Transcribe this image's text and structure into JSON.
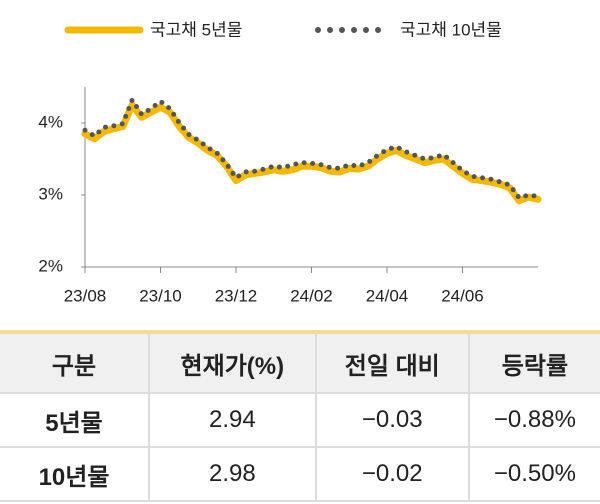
{
  "chart_data": {
    "type": "line",
    "categories": [
      "23/08",
      null,
      null,
      null,
      null,
      null,
      null,
      null,
      "23/10",
      null,
      null,
      null,
      null,
      null,
      null,
      null,
      "23/12",
      null,
      null,
      null,
      null,
      null,
      null,
      null,
      "24/02",
      null,
      null,
      null,
      null,
      null,
      null,
      null,
      "24/04",
      null,
      null,
      null,
      null,
      null,
      null,
      null,
      "24/06",
      null,
      null,
      null,
      null,
      null,
      null,
      null,
      null
    ],
    "series": [
      {
        "name": "국고채 5년물",
        "color": "#f5b800",
        "style": "solid",
        "values": [
          3.85,
          3.78,
          3.88,
          3.92,
          3.95,
          4.25,
          4.08,
          4.15,
          4.22,
          4.15,
          3.95,
          3.8,
          3.72,
          3.62,
          3.55,
          3.4,
          3.2,
          3.28,
          3.3,
          3.32,
          3.35,
          3.33,
          3.35,
          3.4,
          3.4,
          3.38,
          3.33,
          3.32,
          3.37,
          3.36,
          3.4,
          3.5,
          3.58,
          3.62,
          3.55,
          3.5,
          3.45,
          3.48,
          3.5,
          3.4,
          3.3,
          3.22,
          3.2,
          3.18,
          3.15,
          3.1,
          2.92,
          2.97,
          2.94
        ]
      },
      {
        "name": "국고채 10년물",
        "color": "#555555",
        "style": "dotted",
        "values": [
          3.9,
          3.82,
          3.94,
          3.96,
          3.99,
          4.32,
          4.12,
          4.2,
          4.3,
          4.2,
          4.0,
          3.84,
          3.76,
          3.66,
          3.58,
          3.43,
          3.24,
          3.32,
          3.33,
          3.36,
          3.4,
          3.38,
          3.42,
          3.45,
          3.44,
          3.42,
          3.38,
          3.37,
          3.42,
          3.4,
          3.45,
          3.55,
          3.63,
          3.67,
          3.6,
          3.55,
          3.5,
          3.52,
          3.56,
          3.45,
          3.34,
          3.26,
          3.24,
          3.22,
          3.18,
          3.14,
          2.96,
          3.0,
          2.98
        ]
      }
    ],
    "ylim": [
      2,
      4.5
    ],
    "yticks": [
      {
        "value": 2,
        "label": "2%"
      },
      {
        "value": 3,
        "label": "3%"
      },
      {
        "value": 4,
        "label": "4%"
      }
    ]
  },
  "table": {
    "header": [
      "구분",
      "현재가(%)",
      "전일 대비",
      "등락률"
    ],
    "rows": [
      [
        "5년물",
        "2.94",
        "−0.03",
        "−0.88%"
      ],
      [
        "10년물",
        "2.98",
        "−0.02",
        "−0.50%"
      ]
    ]
  }
}
